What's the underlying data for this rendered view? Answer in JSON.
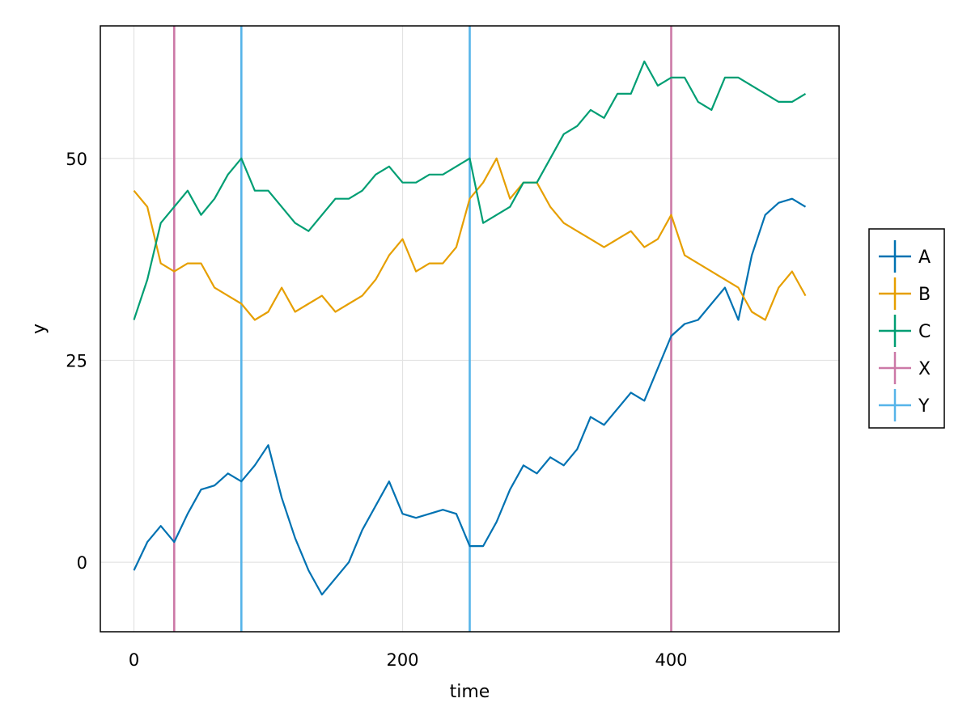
{
  "chart_data": {
    "type": "line",
    "title": "",
    "xlabel": "time",
    "ylabel": "y",
    "xlim": [
      -25,
      525
    ],
    "ylim": [
      -8.6,
      66.4
    ],
    "x_ticks": [
      0,
      200,
      400
    ],
    "y_ticks": [
      0,
      25,
      50
    ],
    "grid": true,
    "legend_position": "right",
    "series": [
      {
        "name": "A",
        "color": "#0072B2",
        "x": [
          0,
          10,
          20,
          30,
          40,
          50,
          60,
          70,
          80,
          90,
          100,
          110,
          120,
          130,
          140,
          150,
          160,
          170,
          180,
          190,
          200,
          210,
          220,
          230,
          240,
          250,
          260,
          270,
          280,
          290,
          300,
          310,
          320,
          330,
          340,
          350,
          360,
          370,
          380,
          390,
          400,
          410,
          420,
          430,
          440,
          450,
          460,
          470,
          480,
          490,
          500
        ],
        "y": [
          -1,
          2.5,
          4.5,
          2.5,
          6,
          9,
          9.5,
          11,
          10,
          12,
          14.5,
          8,
          3,
          -1,
          -4,
          -2,
          0,
          4,
          7,
          10,
          6,
          5.5,
          6,
          6.5,
          6,
          2,
          2,
          5,
          9,
          12,
          11,
          13,
          12,
          14,
          18,
          17,
          19,
          21,
          20,
          24,
          28,
          29.5,
          30,
          32,
          34,
          30,
          38,
          43,
          44.5,
          45,
          44
        ]
      },
      {
        "name": "B",
        "color": "#E69F00",
        "x": [
          0,
          10,
          20,
          30,
          40,
          50,
          60,
          70,
          80,
          90,
          100,
          110,
          120,
          130,
          140,
          150,
          160,
          170,
          180,
          190,
          200,
          210,
          220,
          230,
          240,
          250,
          260,
          270,
          280,
          290,
          300,
          310,
          320,
          330,
          340,
          350,
          360,
          370,
          380,
          390,
          400,
          410,
          420,
          430,
          440,
          450,
          460,
          470,
          480,
          490,
          500
        ],
        "y": [
          46,
          44,
          37,
          36,
          37,
          37,
          34,
          33,
          32,
          30,
          31,
          34,
          31,
          32,
          33,
          31,
          32,
          33,
          35,
          38,
          40,
          36,
          37,
          37,
          39,
          45,
          47,
          50,
          45,
          47,
          47,
          44,
          42,
          41,
          40,
          39,
          40,
          41,
          39,
          40,
          43,
          38,
          37,
          36,
          35,
          34,
          31,
          30,
          34,
          36,
          33
        ]
      },
      {
        "name": "C",
        "color": "#009E73",
        "x": [
          0,
          10,
          20,
          30,
          40,
          50,
          60,
          70,
          80,
          90,
          100,
          110,
          120,
          130,
          140,
          150,
          160,
          170,
          180,
          190,
          200,
          210,
          220,
          230,
          240,
          250,
          260,
          270,
          280,
          290,
          300,
          310,
          320,
          330,
          340,
          350,
          360,
          370,
          380,
          390,
          400,
          410,
          420,
          430,
          440,
          450,
          460,
          470,
          480,
          490,
          500
        ],
        "y": [
          30,
          35,
          42,
          44,
          46,
          43,
          45,
          48,
          50,
          46,
          46,
          44,
          42,
          41,
          43,
          45,
          45,
          46,
          48,
          49,
          47,
          47,
          48,
          48,
          49,
          50,
          42,
          43,
          44,
          47,
          47,
          50,
          53,
          54,
          56,
          55,
          58,
          58,
          62,
          59,
          60,
          60,
          57,
          56,
          60,
          60,
          59,
          58,
          57,
          57,
          58
        ]
      }
    ],
    "vlines": [
      {
        "name": "X",
        "color": "#CC79A7",
        "x": [
          30,
          400
        ]
      },
      {
        "name": "Y",
        "color": "#56B4E9",
        "x": [
          80,
          250
        ]
      }
    ]
  }
}
